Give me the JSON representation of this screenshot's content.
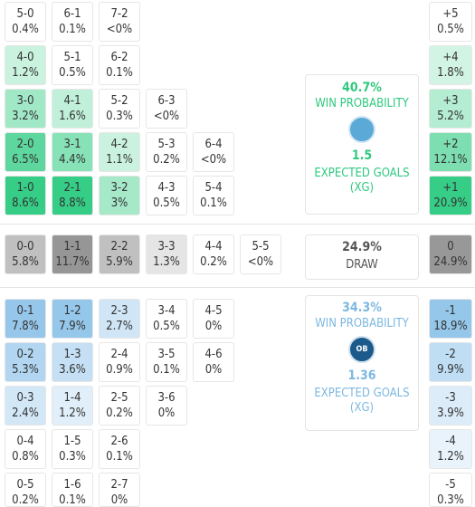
{
  "home": {
    "rows": [
      [
        {
          "score": "5-0",
          "pct": "0.4%"
        },
        {
          "score": "6-1",
          "pct": "0.1%"
        },
        {
          "score": "7-2",
          "pct": "<0%"
        }
      ],
      [
        {
          "score": "4-0",
          "pct": "1.2%"
        },
        {
          "score": "5-1",
          "pct": "0.5%"
        },
        {
          "score": "6-2",
          "pct": "0.1%"
        }
      ],
      [
        {
          "score": "3-0",
          "pct": "3.2%"
        },
        {
          "score": "4-1",
          "pct": "1.6%"
        },
        {
          "score": "5-2",
          "pct": "0.3%"
        },
        {
          "score": "6-3",
          "pct": "<0%"
        }
      ],
      [
        {
          "score": "2-0",
          "pct": "6.5%"
        },
        {
          "score": "3-1",
          "pct": "4.4%"
        },
        {
          "score": "4-2",
          "pct": "1.1%"
        },
        {
          "score": "5-3",
          "pct": "0.2%"
        },
        {
          "score": "6-4",
          "pct": "<0%"
        }
      ],
      [
        {
          "score": "1-0",
          "pct": "8.6%"
        },
        {
          "score": "2-1",
          "pct": "8.8%"
        },
        {
          "score": "3-2",
          "pct": "3%"
        },
        {
          "score": "4-3",
          "pct": "0.5%"
        },
        {
          "score": "5-4",
          "pct": "0.1%"
        }
      ]
    ],
    "margins": [
      {
        "label": "+5",
        "pct": "0.5%"
      },
      {
        "label": "+4",
        "pct": "1.8%"
      },
      {
        "label": "+3",
        "pct": "5.2%"
      },
      {
        "label": "+2",
        "pct": "12.1%"
      },
      {
        "label": "+1",
        "pct": "20.9%"
      }
    ],
    "panel": {
      "probability": "40.7%",
      "probability_label": "WIN PROBABILITY",
      "xg": "1.5",
      "xg_label": "EXPECTED GOALS (XG)"
    }
  },
  "draw": {
    "rows": [
      [
        {
          "score": "0-0",
          "pct": "5.8%"
        },
        {
          "score": "1-1",
          "pct": "11.7%"
        },
        {
          "score": "2-2",
          "pct": "5.9%"
        },
        {
          "score": "3-3",
          "pct": "1.3%"
        },
        {
          "score": "4-4",
          "pct": "0.2%"
        },
        {
          "score": "5-5",
          "pct": "<0%"
        }
      ]
    ],
    "margins": [
      {
        "label": "0",
        "pct": "24.9%"
      }
    ],
    "panel": {
      "probability": "24.9%",
      "probability_label": "DRAW"
    }
  },
  "away": {
    "rows": [
      [
        {
          "score": "0-1",
          "pct": "7.8%"
        },
        {
          "score": "1-2",
          "pct": "7.9%"
        },
        {
          "score": "2-3",
          "pct": "2.7%"
        },
        {
          "score": "3-4",
          "pct": "0.5%"
        },
        {
          "score": "4-5",
          "pct": "0%"
        }
      ],
      [
        {
          "score": "0-2",
          "pct": "5.3%"
        },
        {
          "score": "1-3",
          "pct": "3.6%"
        },
        {
          "score": "2-4",
          "pct": "0.9%"
        },
        {
          "score": "3-5",
          "pct": "0.1%"
        },
        {
          "score": "4-6",
          "pct": "0%"
        }
      ],
      [
        {
          "score": "0-3",
          "pct": "2.4%"
        },
        {
          "score": "1-4",
          "pct": "1.2%"
        },
        {
          "score": "2-5",
          "pct": "0.2%"
        },
        {
          "score": "3-6",
          "pct": "0%"
        }
      ],
      [
        {
          "score": "0-4",
          "pct": "0.8%"
        },
        {
          "score": "1-5",
          "pct": "0.3%"
        },
        {
          "score": "2-6",
          "pct": "0.1%"
        }
      ],
      [
        {
          "score": "0-5",
          "pct": "0.2%"
        },
        {
          "score": "1-6",
          "pct": "0.1%"
        },
        {
          "score": "2-7",
          "pct": "0%"
        }
      ]
    ],
    "margins": [
      {
        "label": "-1",
        "pct": "18.9%"
      },
      {
        "label": "-2",
        "pct": "9.9%"
      },
      {
        "label": "-3",
        "pct": "3.9%"
      },
      {
        "label": "-4",
        "pct": "1.2%"
      },
      {
        "label": "-5",
        "pct": "0.3%"
      }
    ],
    "panel": {
      "probability": "34.3%",
      "probability_label": "WIN PROBABILITY",
      "badge": "OB",
      "xg": "1.36",
      "xg_label": "EXPECTED GOALS (XG)"
    }
  }
}
